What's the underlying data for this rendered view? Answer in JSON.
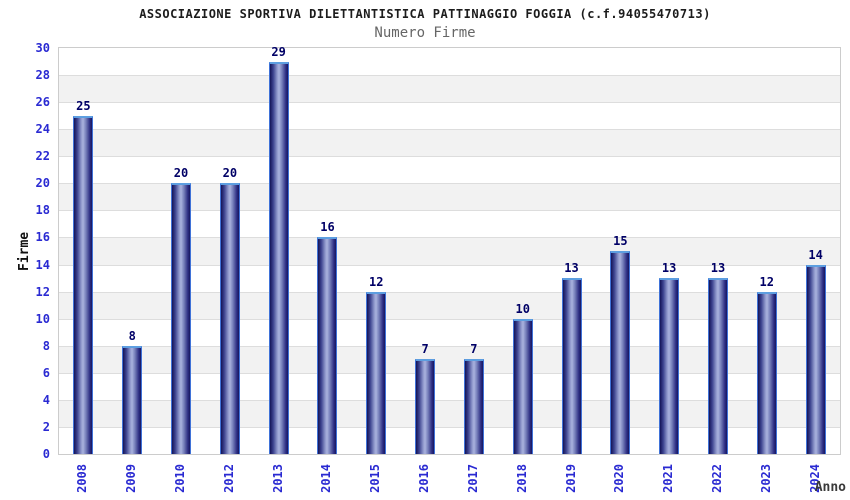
{
  "header": {
    "title": "ASSOCIAZIONE SPORTIVA DILETTANTISTICA PATTINAGGIO FOGGIA (c.f.94055470713)",
    "subtitle": "Numero Firme"
  },
  "chart_data": {
    "type": "bar",
    "title": "ASSOCIAZIONE SPORTIVA DILETTANTISTICA PATTINAGGIO FOGGIA (c.f.94055470713)",
    "subtitle": "Numero Firme",
    "categories": [
      "2008",
      "2009",
      "2010",
      "2012",
      "2013",
      "2014",
      "2015",
      "2016",
      "2017",
      "2018",
      "2019",
      "2020",
      "2021",
      "2022",
      "2023",
      "2024"
    ],
    "values": [
      25,
      8,
      20,
      20,
      29,
      16,
      12,
      7,
      7,
      10,
      13,
      15,
      13,
      13,
      12,
      14
    ],
    "xlabel": "Anno",
    "ylabel": "Firme",
    "ylim": [
      0,
      30
    ],
    "ytick_step": 2,
    "grid": "alternating horizontal bands every 2 units, gridline at each even value",
    "legend": "none",
    "colors": {
      "bar_edge": "#161660",
      "bar_center": "#aab2de",
      "bar_outline": "#3f72d8",
      "bar_top_highlight": "#5d9ee0",
      "value_label": "#000066",
      "tick_label": "#2a2ad2",
      "band_gray": "#f2f2f2",
      "band_white": "#ffffff",
      "plot_border": "#cccccc",
      "title": "#1c1c1c",
      "subtitle": "#666666",
      "axis_title": "#111111"
    }
  }
}
